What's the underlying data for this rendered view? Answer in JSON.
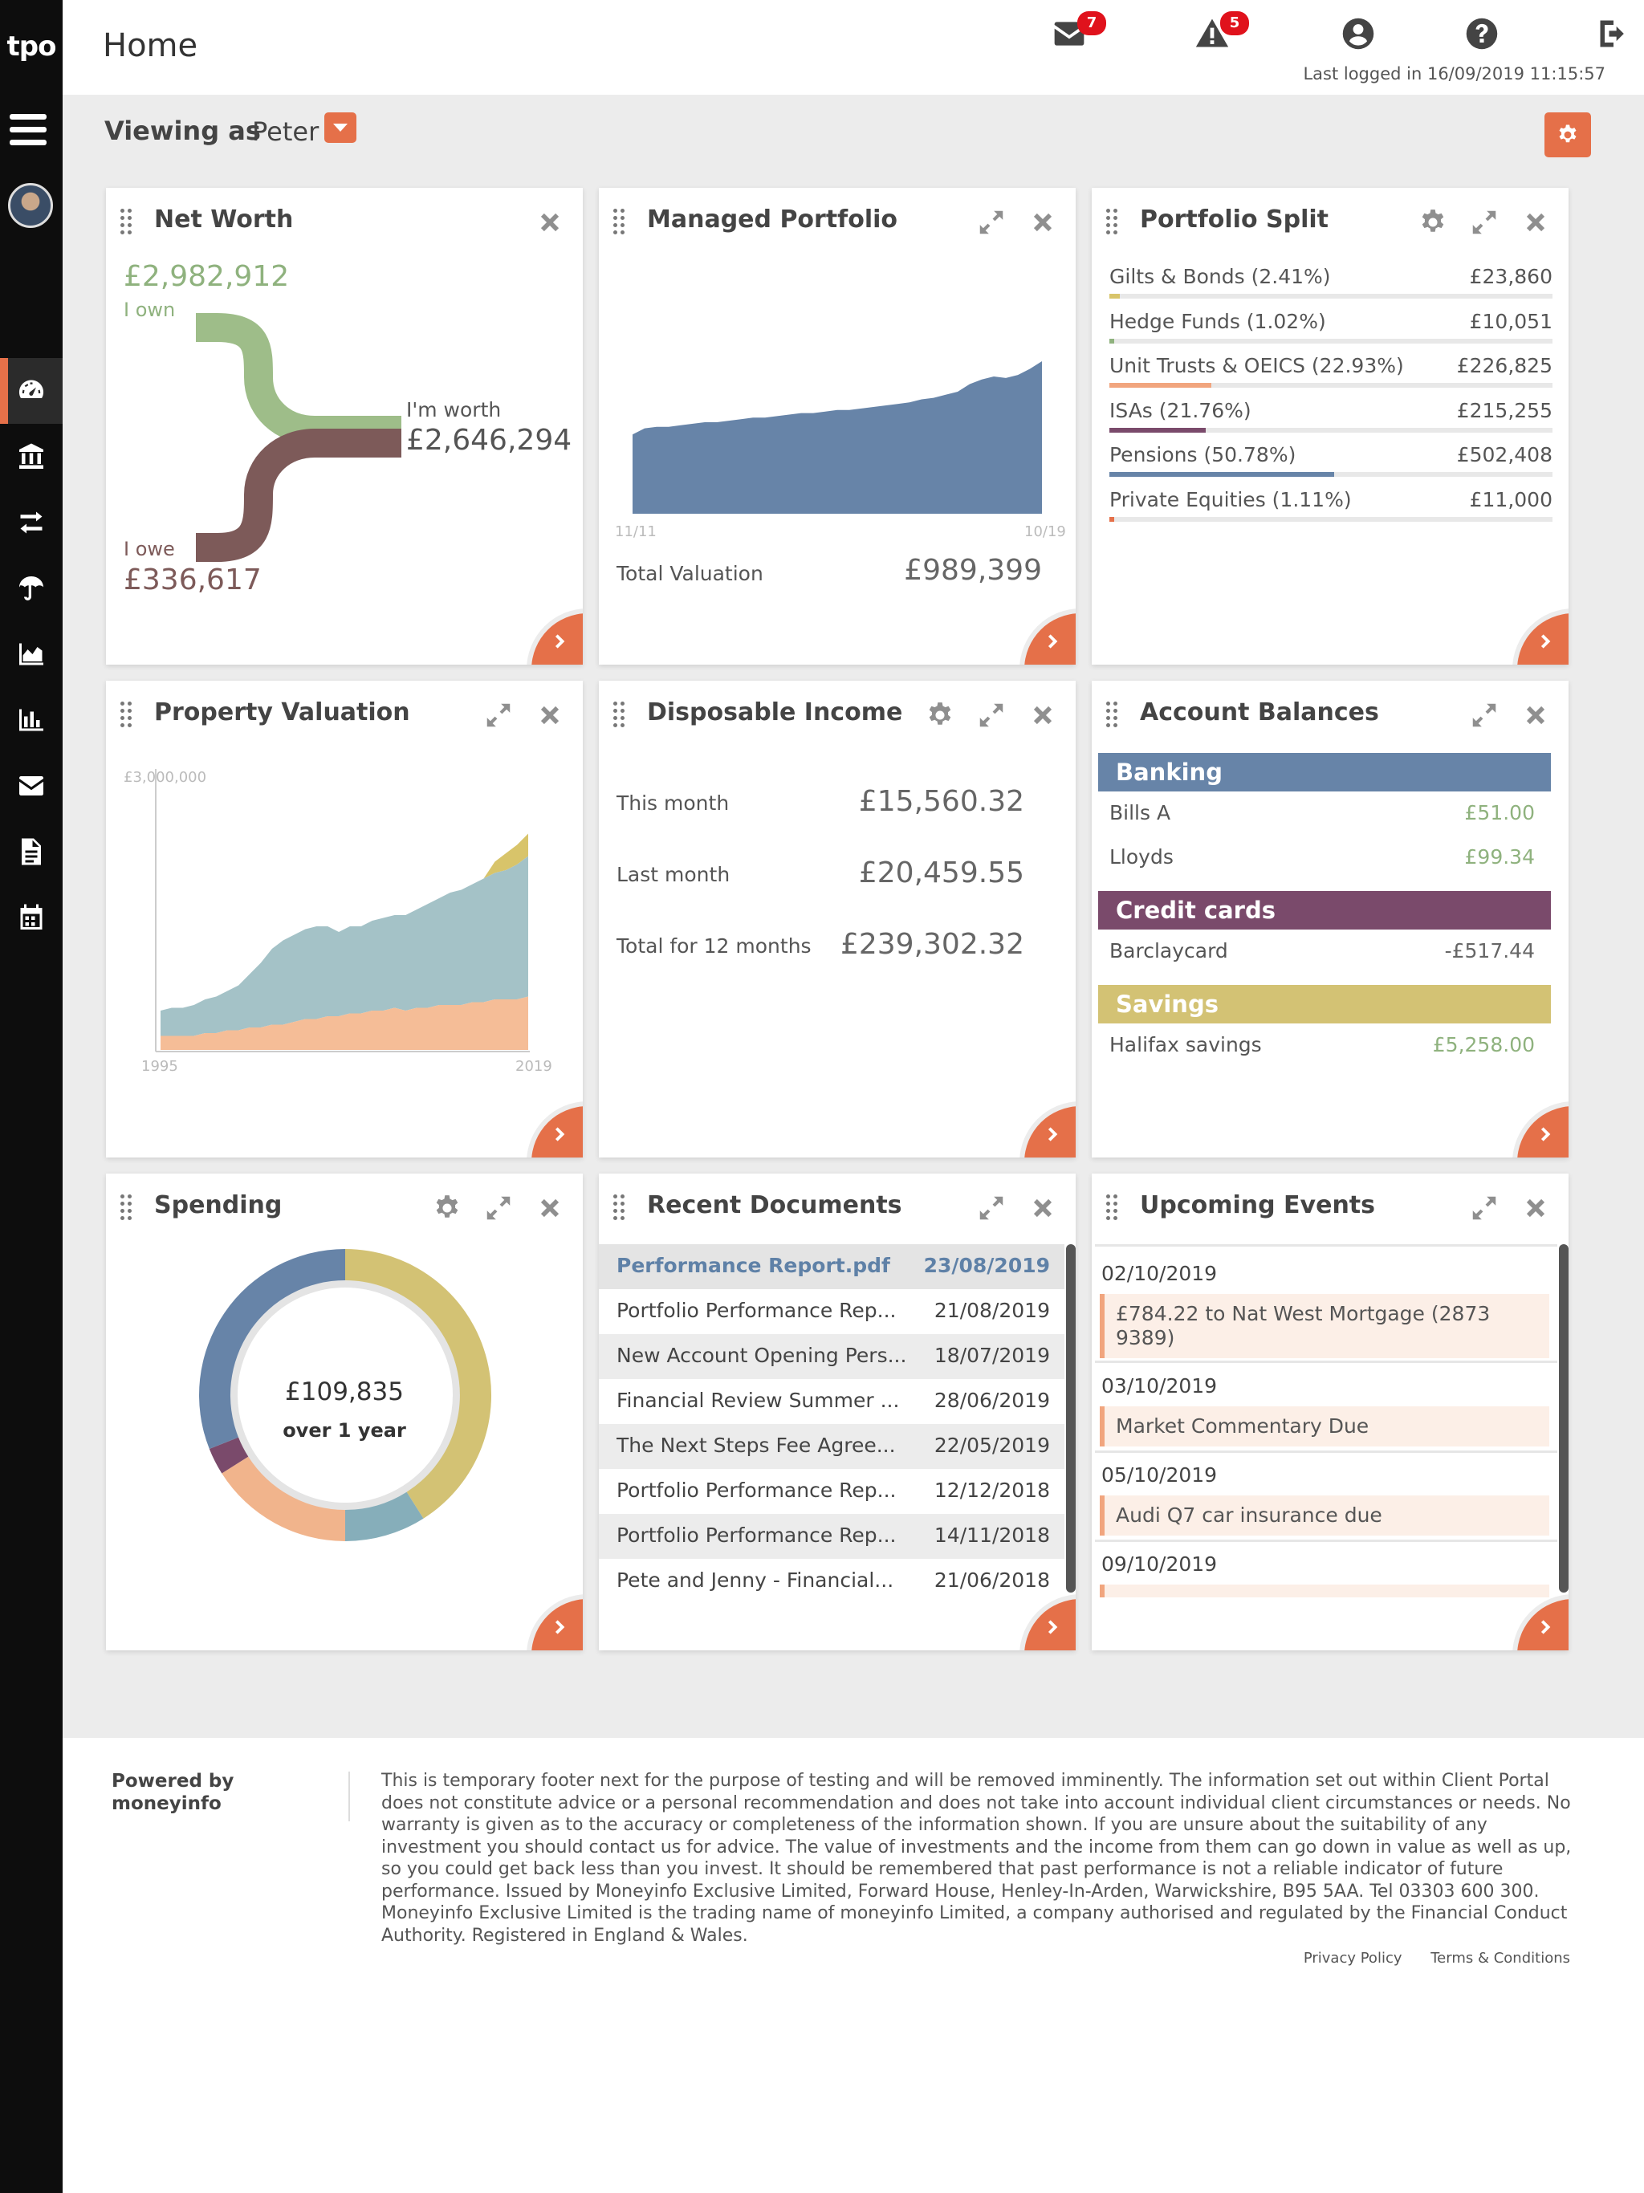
{
  "app": {
    "logo": "tpo"
  },
  "header": {
    "title": "Home",
    "messages_count": "7",
    "alerts_count": "5",
    "last_logged": "Last logged in 16/09/2019 11:15:57"
  },
  "viewing": {
    "label": "Viewing as",
    "name": "Peter"
  },
  "sidebar": {
    "items": [
      {
        "name": "dashboard-icon"
      },
      {
        "name": "bank-icon"
      },
      {
        "name": "transfer-icon"
      },
      {
        "name": "umbrella-icon"
      },
      {
        "name": "area-chart-icon"
      },
      {
        "name": "bar-chart-icon"
      },
      {
        "name": "envelope-icon"
      },
      {
        "name": "document-icon"
      },
      {
        "name": "calendar-icon"
      }
    ]
  },
  "net_worth": {
    "title": "Net Worth",
    "own_value": "£2,982,912",
    "own_label": "I own",
    "worth_label": "I'm worth",
    "worth_value": "£2,646,294",
    "owe_label": "I owe",
    "owe_value": "£336,617",
    "colors": {
      "own": "#9ebd89",
      "owe": "#7d5a59"
    }
  },
  "managed_portfolio": {
    "title": "Managed Portfolio",
    "total_label": "Total Valuation",
    "total_value": "£989,399",
    "chart_data": {
      "type": "area",
      "x_start_label": "11/11",
      "x_end_label": "10/19",
      "values": [
        52,
        56,
        57,
        57,
        58,
        59,
        60,
        60,
        61,
        62,
        63,
        63,
        64,
        65,
        66,
        66,
        67,
        68,
        68,
        69,
        70,
        71,
        72,
        73,
        75,
        76,
        78,
        80,
        85,
        88,
        90,
        89,
        91,
        95,
        100
      ],
      "color": "#6784a8"
    }
  },
  "portfolio_split": {
    "title": "Portfolio Split",
    "rows": [
      {
        "label": "Gilts & Bonds (2.41%)",
        "value": "£23,860",
        "pct": 2.41,
        "color": "#d8c46a"
      },
      {
        "label": "Hedge Funds (1.02%)",
        "value": "£10,051",
        "pct": 1.02,
        "color": "#8fb27e"
      },
      {
        "label": "Unit Trusts & OEICS (22.93%)",
        "value": "£226,825",
        "pct": 22.93,
        "color": "#f1a57e"
      },
      {
        "label": "ISAs (21.76%)",
        "value": "£215,255",
        "pct": 21.76,
        "color": "#7a4a6b"
      },
      {
        "label": "Pensions (50.78%)",
        "value": "£502,408",
        "pct": 50.78,
        "color": "#6784a8"
      },
      {
        "label": "Private Equities (1.11%)",
        "value": "£11,000",
        "pct": 1.11,
        "color": "#e57049"
      }
    ]
  },
  "property_valuation": {
    "title": "Property Valuation",
    "chart_data": {
      "type": "area",
      "y_max_label": "£3,000,000",
      "x_start_label": "1995",
      "x_end_label": "2019",
      "series": [
        {
          "values": [
            5,
            5,
            5,
            5,
            6,
            6,
            7,
            7,
            8,
            8,
            9,
            9,
            10,
            11,
            11,
            12,
            12,
            13,
            13,
            14,
            14,
            15,
            14,
            15,
            15,
            16,
            16,
            16,
            17,
            17,
            18,
            18,
            18,
            19
          ],
          "color": "#f5bd97"
        },
        {
          "values": [
            9,
            10,
            10,
            11,
            12,
            13,
            14,
            16,
            19,
            23,
            27,
            30,
            31,
            32,
            33,
            32,
            30,
            31,
            31,
            32,
            33,
            33,
            34,
            35,
            37,
            38,
            40,
            41,
            42,
            44,
            45,
            46,
            48,
            50
          ],
          "color": "#a4c2c7"
        },
        {
          "values": [
            0,
            0,
            0,
            0,
            0,
            0,
            0,
            0,
            0,
            0,
            0,
            0,
            0,
            0,
            0,
            0,
            0,
            0,
            0,
            0,
            0,
            0,
            0,
            0,
            0,
            0,
            0,
            0,
            0,
            0,
            4,
            6,
            7,
            8
          ],
          "color": "#d8c46a"
        }
      ]
    }
  },
  "disposable_income": {
    "title": "Disposable Income",
    "rows": [
      {
        "label": "This month",
        "value": "£15,560.32"
      },
      {
        "label": "Last month",
        "value": "£20,459.55"
      },
      {
        "label": "Total for 12 months",
        "value": "£239,302.32"
      }
    ]
  },
  "account_balances": {
    "title": "Account Balances",
    "groups": [
      {
        "name": "Banking",
        "color": "#6784a8",
        "rows": [
          {
            "label": "Bills A",
            "value": "£51.00"
          },
          {
            "label": "Lloyds",
            "value": "£99.34"
          }
        ]
      },
      {
        "name": "Credit cards",
        "color": "#7a4a6b",
        "rows": [
          {
            "label": "Barclaycard",
            "value": "-£517.44"
          }
        ]
      },
      {
        "name": "Savings",
        "color": "#d3c274",
        "rows": [
          {
            "label": "Halifax savings",
            "value": "£5,258.00"
          }
        ]
      }
    ],
    "positive_color": "#8fb27e",
    "negative_color": "#666666"
  },
  "spending": {
    "title": "Spending",
    "amount": "£109,835",
    "period": "over 1 year",
    "chart_data": {
      "type": "pie",
      "slices": [
        {
          "value": 41,
          "color": "#d3c274"
        },
        {
          "value": 9,
          "color": "#86aeba"
        },
        {
          "value": 16,
          "color": "#f1b48c"
        },
        {
          "value": 3,
          "color": "#7a4a6b"
        },
        {
          "value": 31,
          "color": "#6784a8"
        }
      ]
    }
  },
  "recent_documents": {
    "title": "Recent Documents",
    "rows": [
      {
        "name": "Performance Report.pdf",
        "date": "23/08/2019"
      },
      {
        "name": "Portfolio Performance Rep...",
        "date": "21/08/2019"
      },
      {
        "name": "New Account Opening Pers...",
        "date": "18/07/2019"
      },
      {
        "name": "Financial Review Summer ...",
        "date": "28/06/2019"
      },
      {
        "name": "The Next Steps Fee Agree...",
        "date": "22/05/2019"
      },
      {
        "name": "Portfolio Performance Rep...",
        "date": "12/12/2018"
      },
      {
        "name": "Portfolio Performance Rep...",
        "date": "14/11/2018"
      },
      {
        "name": "Pete and Jenny - Financial...",
        "date": "21/06/2018"
      }
    ]
  },
  "upcoming_events": {
    "title": "Upcoming Events",
    "events": [
      {
        "date": "02/10/2019",
        "text": "£784.22 to Nat West Mortgage (2873 9389)"
      },
      {
        "date": "03/10/2019",
        "text": "Market Commentary Due"
      },
      {
        "date": "05/10/2019",
        "text": "Audi Q7 car insurance due"
      },
      {
        "date": "09/10/2019",
        "text": ""
      }
    ]
  },
  "footer": {
    "powered_by": "Powered by moneyinfo",
    "disclaimer": "This is temporary footer next for the purpose of testing and will be removed imminently. The information set out within Client Portal does not constitute advice or a personal recommendation and does not take into account individual client circumstances or needs. No warranty is given as to the accuracy or completeness of the information shown. If you are unsure about the suitability of any investment you should contact us for advice. The value of investments and the income from them can go down in value as well as up, so you could get back less than you invest. It should be remembered that past performance is not a reliable indicator of future performance. Issued by Moneyinfo Exclusive Limited, Forward House, Henley-In-Arden, Warwickshire, B95 5AA. Tel 03303 600 300. Moneyinfo Exclusive Limited is the trading name of moneyinfo Limited, a company authorised and regulated by the Financial Conduct Authority. Registered in England & Wales.",
    "privacy": "Privacy Policy",
    "terms": "Terms & Conditions"
  }
}
